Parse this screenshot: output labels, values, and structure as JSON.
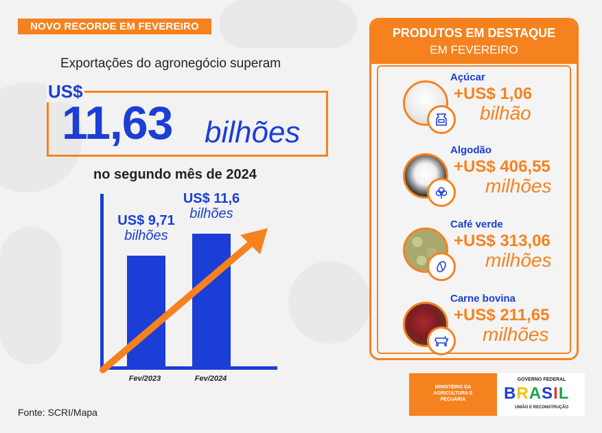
{
  "header": {
    "tag": "NOVO RECORDE EM FEVEREIRO"
  },
  "main": {
    "intro": "Exportações do agronegócio superam",
    "currency": "US$",
    "value": "11,63",
    "unit": "bilhões",
    "subtitle": "no segundo mês de 2024"
  },
  "chart_data": {
    "type": "bar",
    "categories": [
      "Fev/2023",
      "Fev/2024"
    ],
    "values": [
      9.71,
      11.6
    ],
    "value_labels": [
      {
        "value": "US$ 9,71",
        "unit": "bilhões"
      },
      {
        "value": "US$ 11,6",
        "unit": "bilhões"
      }
    ],
    "trend_arrow": true
  },
  "source": "Fonte: SCRI/Mapa",
  "panel": {
    "title": "PRODUTOS EM DESTAQUE",
    "subtitle": "EM FEVEREIRO",
    "products": [
      {
        "name": "Açúcar",
        "value": "+US$ 1,06",
        "unit": "bilhão",
        "icon": "sugar-bag-icon"
      },
      {
        "name": "Algodão",
        "value": "+US$ 406,55",
        "unit": "milhões",
        "icon": "cotton-icon"
      },
      {
        "name": "Café verde",
        "value": "+US$ 313,06",
        "unit": "milhões",
        "icon": "coffee-bean-icon"
      },
      {
        "name": "Carne bovina",
        "value": "+US$ 211,65",
        "unit": "milhões",
        "icon": "cow-icon"
      }
    ]
  },
  "footer": {
    "ministry": [
      "MINISTÉRIO DA",
      "AGRICULTURA E",
      "PECUÁRIA"
    ],
    "gov_label": "GOVERNO FEDERAL",
    "brand": "BRASIL",
    "tagline": "UNIÃO E RECONSTRUÇÃO",
    "colors": {
      "orange": "#f5821f",
      "blue": "#1a3ed6"
    }
  }
}
